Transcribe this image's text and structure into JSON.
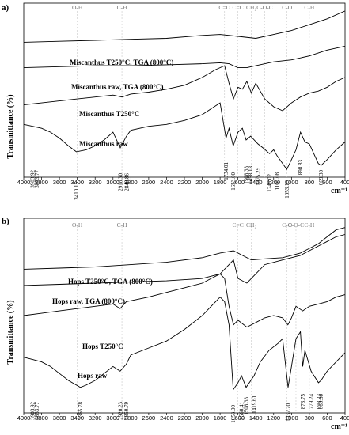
{
  "chart_data": [
    {
      "panel": "a)",
      "type": "line",
      "xlabel": "cm⁻¹",
      "ylabel": "Transmittance (%)",
      "xlim": [
        4000,
        400
      ],
      "x_ticks": [
        "4000",
        "3800",
        "3600",
        "3400",
        "3200",
        "3000",
        "2800",
        "2600",
        "2400",
        "2200",
        "2000",
        "1800",
        "1600",
        "1400",
        "1200",
        "1000",
        "800",
        "600",
        "400"
      ],
      "bands": [
        {
          "label": "O-H",
          "x": 3400
        },
        {
          "label": "C-H",
          "x": 2900
        },
        {
          "label": "C=O",
          "x": 1750
        },
        {
          "label": "C=C",
          "x": 1600
        },
        {
          "label": "CH₂",
          "x": 1450
        },
        {
          "label": "C-O-C",
          "x": 1300
        },
        {
          "label": "C-O",
          "x": 1050
        },
        {
          "label": "C-H",
          "x": 800
        }
      ],
      "series": [
        {
          "name": "Miscanthus T250°C, TGA (800°C)",
          "x": [
            4000,
            3600,
            3200,
            2800,
            2400,
            2000,
            1800,
            1600,
            1400,
            1200,
            1000,
            800,
            600,
            400
          ],
          "y": [
            84,
            84.5,
            85,
            85.5,
            86,
            87.5,
            88,
            87,
            86,
            88,
            90,
            93,
            96,
            100
          ]
        },
        {
          "name": "Miscanthus raw, TGA (800°C)",
          "x": [
            4000,
            3600,
            3200,
            2800,
            2400,
            2000,
            1800,
            1700,
            1600,
            1500,
            1400,
            1200,
            1000,
            800,
            600,
            400
          ],
          "y": [
            71,
            71.5,
            72,
            72,
            72.5,
            73,
            73.5,
            73,
            71,
            71,
            72,
            74,
            75,
            77,
            80,
            82
          ]
        },
        {
          "name": "Miscanthus T250°C",
          "x": [
            4000,
            3800,
            3600,
            3400,
            3200,
            3000,
            2900,
            2800,
            2600,
            2400,
            2200,
            2000,
            1850,
            1750,
            1700,
            1650,
            1600,
            1550,
            1500,
            1450,
            1400,
            1300,
            1200,
            1100,
            1000,
            900,
            800,
            700,
            600,
            500,
            400
          ],
          "y": [
            52,
            53,
            54,
            55,
            56,
            57,
            56,
            57.5,
            58.5,
            60,
            62,
            66,
            70,
            72,
            63,
            55,
            61,
            60,
            64,
            58,
            63,
            55,
            51,
            49,
            53,
            56,
            58,
            59,
            61,
            64,
            66
          ]
        },
        {
          "name": "Miscanthus raw",
          "x": [
            4000,
            3900,
            3800,
            3700,
            3600,
            3500,
            3410,
            3300,
            3200,
            3100,
            3000,
            2918,
            2849,
            2800,
            2600,
            2400,
            2200,
            2000,
            1900,
            1800,
            1734,
            1700,
            1653,
            1600,
            1550,
            1508,
            1458,
            1375,
            1320,
            1246,
            1200,
            1163,
            1100,
            1053,
            1000,
            950,
            899,
            850,
            800,
            700,
            669,
            600,
            500,
            400
          ],
          "y": [
            42,
            41,
            40,
            38,
            35,
            31,
            28,
            29,
            31,
            34,
            38,
            30,
            36,
            39,
            41,
            42,
            44,
            47,
            50,
            53,
            35,
            40,
            31,
            38,
            40,
            34,
            36,
            32,
            30,
            27,
            29,
            26,
            22,
            19,
            24,
            29,
            38,
            33,
            32,
            22,
            21,
            24,
            29,
            33
          ]
        }
      ],
      "peaks": [
        "3903.92",
        "3853.77",
        "3410.15",
        "2918.30",
        "2848.86",
        "1734.01",
        "1653.00",
        "1508.33",
        "1458.18",
        "1375.25",
        "1246.02",
        "1163.08",
        "1053.13",
        "898.83",
        "669.30"
      ]
    },
    {
      "panel": "b)",
      "type": "line",
      "xlabel": "cm⁻¹",
      "ylabel": "Transmittance (%)",
      "xlim": [
        4000,
        400
      ],
      "x_ticks": [
        "4000",
        "3800",
        "3600",
        "3400",
        "3200",
        "3000",
        "2800",
        "2600",
        "2400",
        "2200",
        "2000",
        "1800",
        "1600",
        "1400",
        "1200",
        "1000",
        "800",
        "600",
        "400"
      ],
      "bands": [
        {
          "label": "O-H",
          "x": 3400
        },
        {
          "label": "C-H",
          "x": 2900
        },
        {
          "label": "C=C",
          "x": 1600
        },
        {
          "label": "CH₂",
          "x": 1450
        },
        {
          "label": "C-O",
          "x": 1050
        },
        {
          "label": "C-O-C",
          "x": 950
        },
        {
          "label": "C-H",
          "x": 800
        }
      ],
      "series": [
        {
          "name": "Hops T250°C, TGA (800°C)",
          "x": [
            4000,
            3600,
            3200,
            2800,
            2400,
            2000,
            1800,
            1650,
            1550,
            1450,
            1300,
            1100,
            1000,
            900,
            800,
            700,
            600,
            500,
            400
          ],
          "y": [
            82,
            82.5,
            83,
            84,
            85,
            87,
            89,
            90,
            88,
            86,
            86.5,
            87,
            88,
            89,
            91,
            93,
            96,
            99,
            100
          ]
        },
        {
          "name": "Hops raw, TGA (800°C)",
          "x": [
            4000,
            3600,
            3200,
            2800,
            2400,
            2000,
            1800,
            1700,
            1650,
            1600,
            1500,
            1400,
            1300,
            1100,
            1000,
            900,
            800,
            700,
            600,
            500,
            400
          ],
          "y": [
            75,
            75.5,
            76,
            76.5,
            77,
            78,
            80,
            84,
            86,
            78,
            76,
            80,
            84,
            86,
            87,
            88,
            90,
            92,
            94,
            96,
            97
          ]
        },
        {
          "name": "Hops T250°C",
          "x": [
            4000,
            3800,
            3600,
            3400,
            3200,
            3000,
            2920,
            2850,
            2600,
            2400,
            2200,
            2000,
            1900,
            1800,
            1750,
            1700,
            1650,
            1600,
            1500,
            1400,
            1300,
            1200,
            1100,
            1040,
            1000,
            950,
            874,
            800,
            700,
            600,
            500,
            400
          ],
          "y": [
            62,
            63,
            64,
            65,
            66,
            67,
            65,
            68,
            70,
            72,
            74,
            76,
            78,
            80,
            78,
            66,
            58,
            60,
            57,
            59,
            61,
            62,
            61,
            58,
            61,
            66,
            64,
            66,
            67,
            68,
            70,
            71
          ]
        },
        {
          "name": "Hops raw",
          "x": [
            4000,
            3900,
            3800,
            3700,
            3600,
            3500,
            3366,
            3300,
            3200,
            3100,
            3000,
            2920,
            2851,
            2800,
            2600,
            2400,
            2200,
            2000,
            1900,
            1800,
            1750,
            1700,
            1653,
            1600,
            1560,
            1508,
            1420,
            1350,
            1250,
            1150,
            1100,
            1038,
            1000,
            950,
            900,
            874,
            850,
            780,
            698,
            669,
            600,
            500,
            400
          ],
          "y": [
            44,
            43,
            42,
            40,
            37,
            34,
            31,
            32,
            34,
            37,
            40,
            38,
            41,
            45,
            48,
            51,
            56,
            62,
            66,
            70,
            68,
            58,
            30,
            33,
            36,
            31,
            36,
            42,
            47,
            50,
            52,
            31,
            40,
            52,
            55,
            40,
            47,
            38,
            33,
            34,
            38,
            42,
            46
          ]
        }
      ],
      "peaks": [
        "3903.92",
        "3853.77",
        "3365.78",
        "2920.23",
        "2850.79",
        "1653.00",
        "1560.41",
        "1508.33",
        "1419.61",
        "1037.70",
        "873.75",
        "779.24",
        "698.23",
        "669.30"
      ]
    }
  ]
}
